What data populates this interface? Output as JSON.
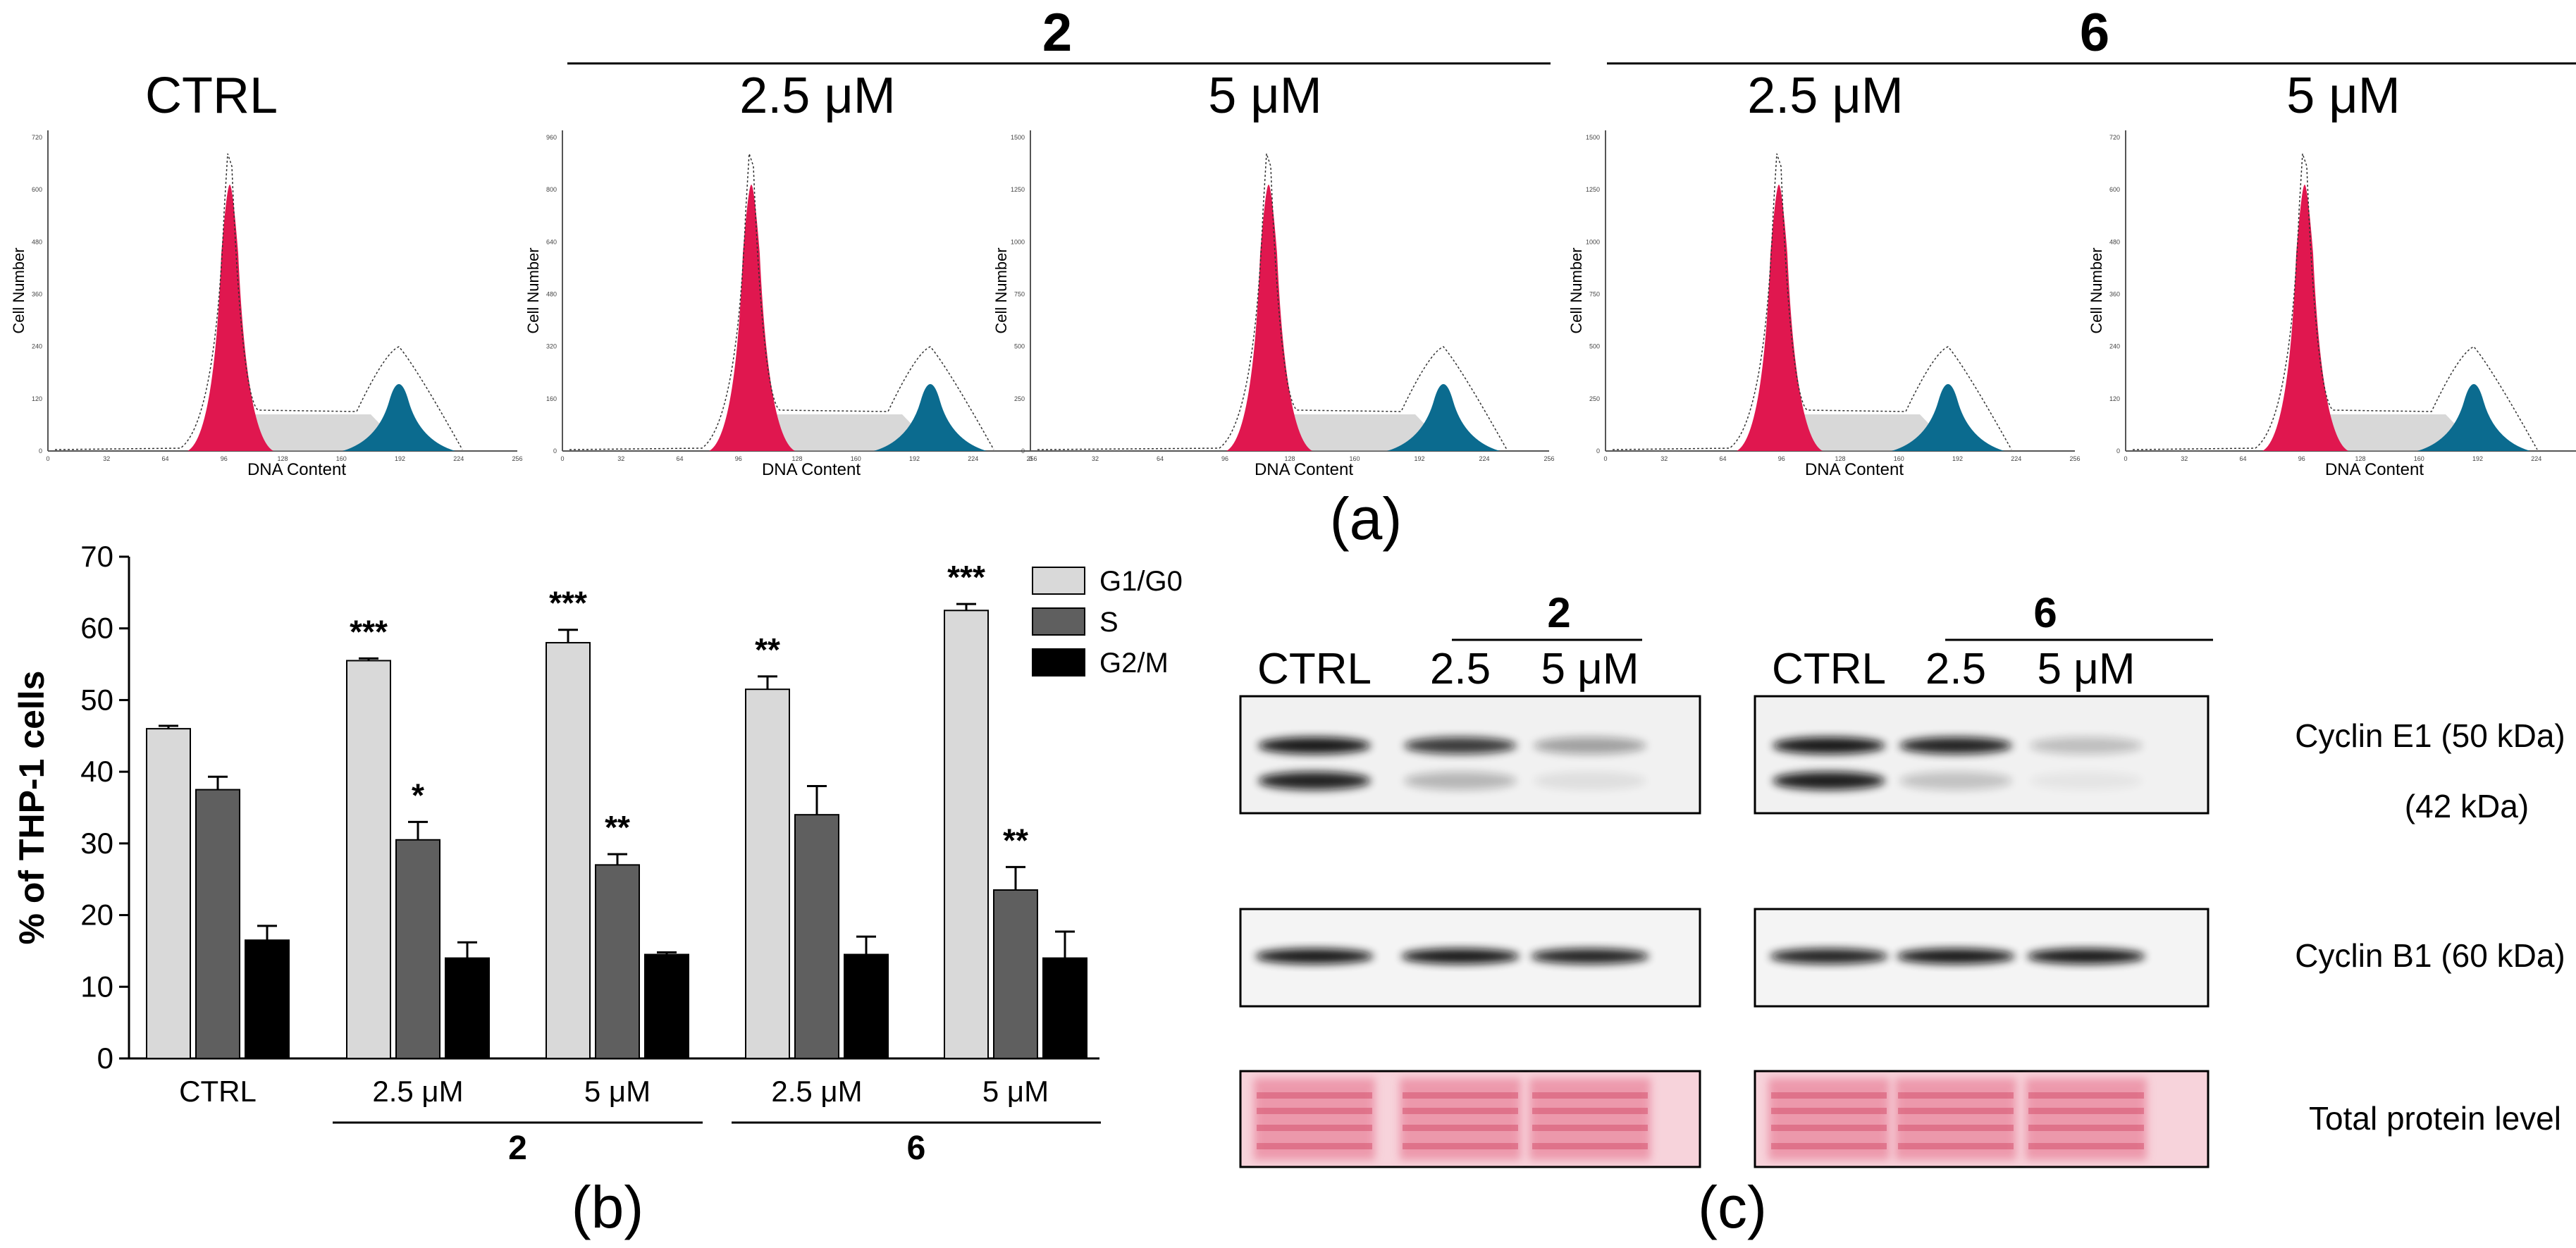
{
  "panel_a": {
    "label": "(a)",
    "compound_group_labels": [
      "2",
      "6"
    ],
    "histogram_axis": {
      "xlabel": "DNA Content",
      "ylabel": "Cell Number",
      "xticks": [
        "0",
        "32",
        "64",
        "96",
        "128",
        "160",
        "192",
        "224",
        "256"
      ]
    },
    "histograms": [
      {
        "title": "CTRL",
        "yticks": [
          "0",
          "120",
          "240",
          "360",
          "480",
          "600",
          "720"
        ]
      },
      {
        "title": "2.5 μM",
        "yticks": [
          "0",
          "160",
          "320",
          "480",
          "640",
          "800",
          "960"
        ]
      },
      {
        "title": "5 μM",
        "yticks": [
          "0",
          "250",
          "500",
          "750",
          "1000",
          "1250",
          "1500"
        ]
      },
      {
        "title": "2.5 μM",
        "yticks": [
          "0",
          "250",
          "500",
          "750",
          "1000",
          "1250",
          "1500"
        ]
      },
      {
        "title": "5 μM",
        "yticks": [
          "0",
          "120",
          "240",
          "360",
          "480",
          "600",
          "720"
        ]
      }
    ],
    "colors": {
      "g1": "#e0174f",
      "s": "#b8b8b8",
      "g2": "#0b6b8f"
    }
  },
  "panel_b": {
    "label": "(b)",
    "chart_data": {
      "type": "bar",
      "ylabel": "% of THP-1 cells",
      "xlabel": "",
      "ylim": [
        0,
        70
      ],
      "yticks": [
        0,
        10,
        20,
        30,
        40,
        50,
        60,
        70
      ],
      "categories": [
        "CTRL",
        "2.5 μM",
        "5 μM",
        "2.5 μM",
        "5 μM"
      ],
      "group_labels": [
        {
          "label": "2",
          "from": 1,
          "to": 2
        },
        {
          "label": "6",
          "from": 3,
          "to": 4
        }
      ],
      "legend_position": "top-right",
      "series": [
        {
          "name": "G1/G0",
          "color": "#d9d9d9",
          "values": [
            46.0,
            55.5,
            58.0,
            51.5,
            62.5
          ],
          "errors": [
            0.4,
            0.3,
            1.8,
            1.8,
            0.9
          ],
          "significance": [
            "",
            "***",
            "***",
            "**",
            "***"
          ]
        },
        {
          "name": "S",
          "color": "#5f5f5f",
          "values": [
            37.5,
            30.5,
            27.0,
            34.0,
            23.5
          ],
          "errors": [
            1.8,
            2.5,
            1.5,
            4.0,
            3.2
          ],
          "significance": [
            "",
            "*",
            "**",
            "",
            "**"
          ]
        },
        {
          "name": "G2/M",
          "color": "#000000",
          "values": [
            16.5,
            14.0,
            14.5,
            14.5,
            14.0
          ],
          "errors": [
            2.0,
            2.2,
            0.3,
            2.5,
            3.7
          ],
          "significance": [
            "",
            "",
            "",
            "",
            ""
          ]
        }
      ]
    }
  },
  "panel_c": {
    "label": "(c)",
    "blots": [
      {
        "group": "2",
        "lanes": [
          "CTRL",
          "2.5",
          "5 μM"
        ]
      },
      {
        "group": "6",
        "lanes": [
          "CTRL",
          "2.5",
          "5 μM"
        ]
      }
    ],
    "row_labels": [
      "Cyclin E1 (50 kDa)",
      "(42 kDa)",
      "Cyclin B1 (60 kDa)",
      "Total protein level"
    ]
  }
}
